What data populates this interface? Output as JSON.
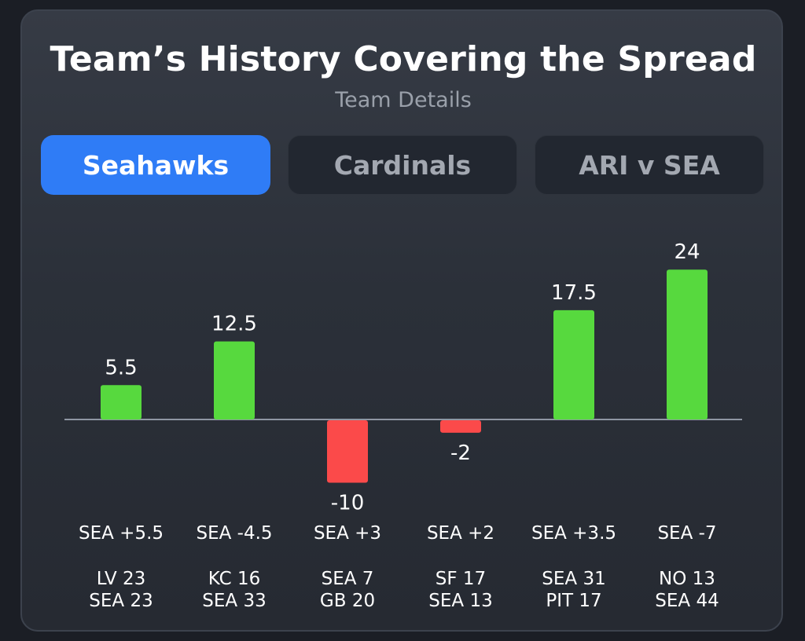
{
  "header": {
    "title": "Team’s History Covering the Spread",
    "subtitle": "Team Details"
  },
  "tabs": [
    {
      "label": "Seahawks",
      "active": true
    },
    {
      "label": "Cardinals",
      "active": false
    },
    {
      "label": "ARI v SEA",
      "active": false
    }
  ],
  "colors": {
    "positive": "#57d93e",
    "negative": "#fb4a4a",
    "accent": "#2f7cf6"
  },
  "chart_data": {
    "type": "bar",
    "categories": [
      "SEA +5.5",
      "SEA -4.5",
      "SEA +3",
      "SEA +2",
      "SEA +3.5",
      "SEA -7"
    ],
    "values": [
      5.5,
      12.5,
      -10,
      -2,
      17.5,
      24
    ],
    "data_labels": [
      "5.5",
      "12.5",
      "-10",
      "-2",
      "17.5",
      "24"
    ],
    "scores": [
      [
        "LV 23",
        "SEA 23"
      ],
      [
        "KC 16",
        "SEA 33"
      ],
      [
        "SEA 7",
        "GB 20"
      ],
      [
        "SF 17",
        "SEA 13"
      ],
      [
        "SEA 31",
        "PIT 17"
      ],
      [
        "NO 13",
        "SEA 44"
      ]
    ],
    "title": "",
    "xlabel": "",
    "ylabel": "",
    "grid": false,
    "legend": "none"
  }
}
